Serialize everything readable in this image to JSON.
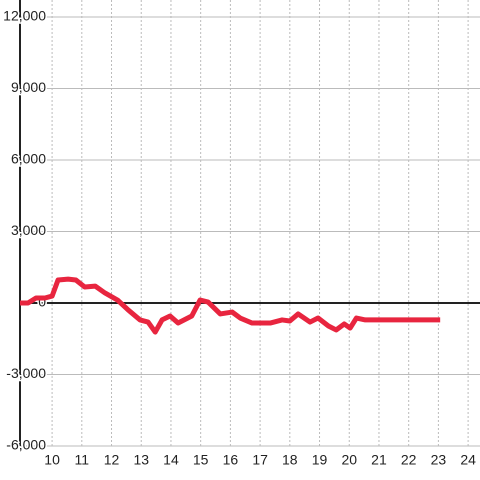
{
  "chart_data": {
    "type": "line",
    "x": [
      8.92,
      9.19,
      9.46,
      9.76,
      10.0,
      10.2,
      10.54,
      10.8,
      11.1,
      11.45,
      11.78,
      12.2,
      12.56,
      12.96,
      13.23,
      13.47,
      13.7,
      13.97,
      14.24,
      14.7,
      14.98,
      15.25,
      15.66,
      16.06,
      16.33,
      16.73,
      17.34,
      17.74,
      18.0,
      18.28,
      18.68,
      18.95,
      19.3,
      19.56,
      19.83,
      20.03,
      20.24,
      20.54,
      21.04,
      23.06
    ],
    "series": [
      {
        "color": "#e8253f",
        "values": [
          0,
          0,
          210,
          210,
          290,
          965,
          1000,
          965,
          670,
          710,
          420,
          125,
          -290,
          -710,
          -800,
          -1220,
          -710,
          -545,
          -840,
          -545,
          125,
          40,
          -460,
          -380,
          -630,
          -840,
          -840,
          -710,
          -755,
          -460,
          -800,
          -630,
          -965,
          -1130,
          -880,
          -1050,
          -630,
          -710,
          -710,
          -710
        ]
      }
    ],
    "xlim": [
      8.92,
      24.4
    ],
    "xticks": [
      10,
      11,
      12,
      13,
      14,
      15,
      16,
      17,
      18,
      19,
      20,
      21,
      22,
      23,
      24
    ],
    "ylim": [
      -6000,
      12000
    ],
    "yticks": [
      {
        "value": -6000,
        "label": "-6,000"
      },
      {
        "value": -3000,
        "label": "-3,000"
      },
      0,
      {
        "value": 3000,
        "label": "3,000"
      },
      {
        "value": 6000,
        "label": "6,000"
      },
      {
        "value": 9000,
        "label": "9,000"
      },
      {
        "value": 12000,
        "label": "12,000"
      }
    ],
    "grid": true
  }
}
